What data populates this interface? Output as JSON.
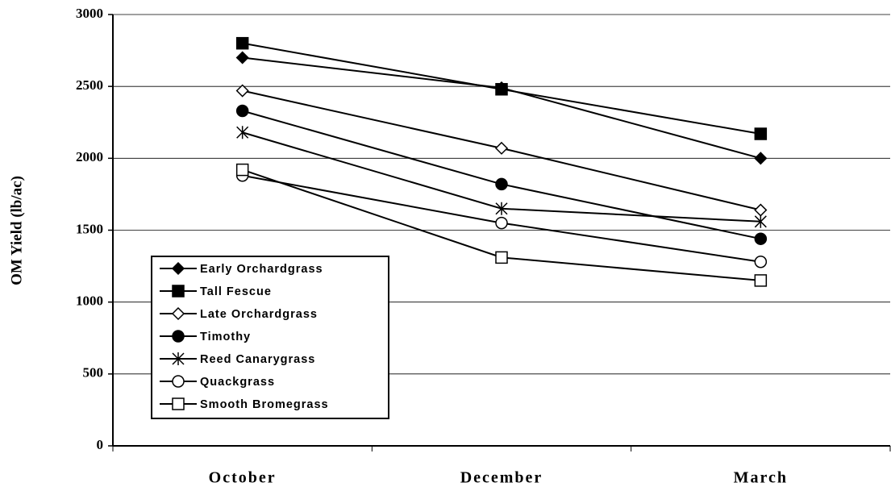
{
  "chart_data": {
    "type": "line",
    "y_label": "OM Yield (lb/ac)",
    "categories": [
      "October",
      "December",
      "March"
    ],
    "series": [
      {
        "name": "Early Orchardgrass",
        "color": "#000000",
        "marker": "diamond-filled",
        "values": [
          2700,
          2490,
          2000
        ]
      },
      {
        "name": "Tall Fescue",
        "color": "#000000",
        "marker": "square-filled",
        "values": [
          2800,
          2480,
          2170
        ]
      },
      {
        "name": "Late Orchardgrass",
        "color": "#000000",
        "marker": "diamond-open",
        "values": [
          2470,
          2070,
          1640
        ]
      },
      {
        "name": "Timothy",
        "color": "#000000",
        "marker": "circle-filled",
        "values": [
          2330,
          1820,
          1440
        ]
      },
      {
        "name": "Reed Canarygrass",
        "color": "#000000",
        "marker": "asterisk",
        "values": [
          2180,
          1650,
          1560
        ]
      },
      {
        "name": "Quackgrass",
        "color": "#000000",
        "marker": "circle-open",
        "values": [
          1880,
          1550,
          1280
        ]
      },
      {
        "name": "Smooth Bromegrass",
        "color": "#000000",
        "marker": "square-open",
        "values": [
          1920,
          1310,
          1150
        ]
      }
    ],
    "ylim": [
      0,
      3000
    ],
    "yticks": [
      0,
      500,
      1000,
      1500,
      2000,
      2500,
      3000
    ],
    "grid": true
  }
}
